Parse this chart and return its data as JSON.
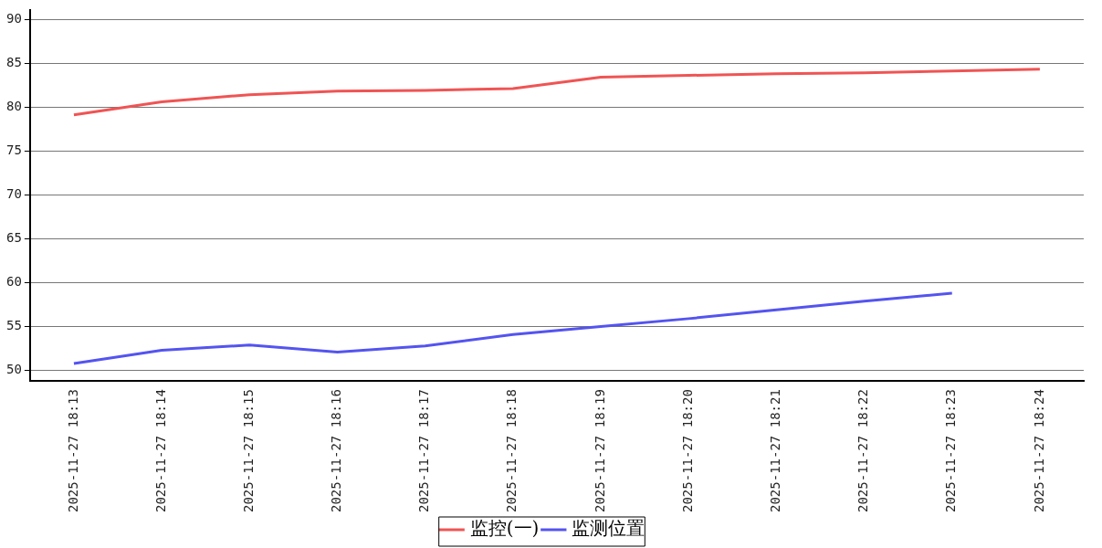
{
  "chart_data": {
    "type": "line",
    "categories": [
      "2025-11-27 18:13",
      "2025-11-27 18:14",
      "2025-11-27 18:15",
      "2025-11-27 18:16",
      "2025-11-27 18:17",
      "2025-11-27 18:18",
      "2025-11-27 18:19",
      "2025-11-27 18:20",
      "2025-11-27 18:21",
      "2025-11-27 18:22",
      "2025-11-27 18:23",
      "2025-11-27 18:24"
    ],
    "series": [
      {
        "name": "监控(一)",
        "color": "#f05454",
        "values": [
          79.1,
          80.6,
          81.4,
          81.8,
          81.9,
          82.1,
          83.4,
          83.6,
          83.8,
          83.9,
          84.1,
          84.3
        ]
      },
      {
        "name": "监测位置",
        "color": "#5454f0",
        "values": [
          50.8,
          52.3,
          52.9,
          52.1,
          52.8,
          54.1,
          55.0,
          55.9,
          56.9,
          57.9,
          58.8,
          null
        ]
      }
    ],
    "ylim": [
      48.8,
      91
    ],
    "yticks": [
      50,
      55,
      60,
      65,
      70,
      75,
      80,
      85,
      90
    ],
    "grid": "y",
    "legend": "bottom",
    "marker": "none",
    "line_style": "solid"
  }
}
